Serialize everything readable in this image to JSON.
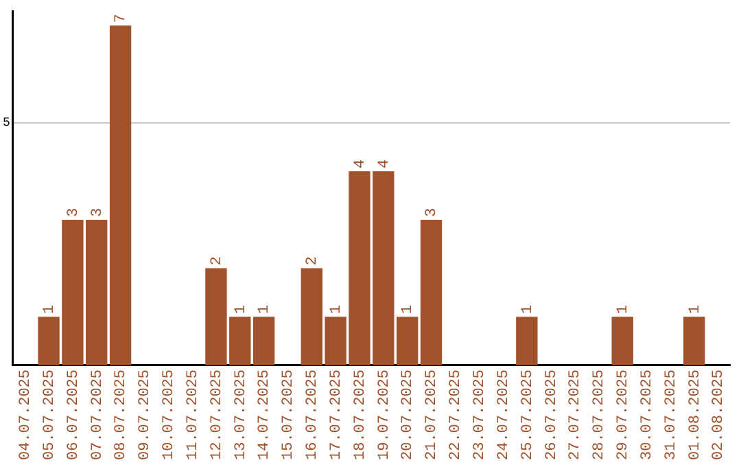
{
  "chart_data": {
    "type": "bar",
    "categories": [
      "04.07.2025",
      "05.07.2025",
      "06.07.2025",
      "07.07.2025",
      "08.07.2025",
      "09.07.2025",
      "10.07.2025",
      "11.07.2025",
      "12.07.2025",
      "13.07.2025",
      "14.07.2025",
      "15.07.2025",
      "16.07.2025",
      "17.07.2025",
      "18.07.2025",
      "19.07.2025",
      "20.07.2025",
      "21.07.2025",
      "22.07.2025",
      "23.07.2025",
      "24.07.2025",
      "25.07.2025",
      "26.07.2025",
      "27.07.2025",
      "28.07.2025",
      "29.07.2025",
      "30.07.2025",
      "31.07.2025",
      "01.08.2025",
      "02.08.2025"
    ],
    "values": [
      0,
      1,
      3,
      3,
      7,
      0,
      0,
      0,
      2,
      1,
      1,
      0,
      2,
      1,
      4,
      4,
      1,
      3,
      0,
      0,
      0,
      1,
      0,
      0,
      0,
      1,
      0,
      0,
      1,
      0
    ],
    "value_labels": [
      null,
      "1",
      "3",
      "3",
      "7",
      null,
      null,
      null,
      "2",
      "1",
      "1",
      null,
      "2",
      "1",
      "4",
      "4",
      "1",
      "3",
      null,
      null,
      null,
      "1",
      null,
      null,
      null,
      "1",
      null,
      null,
      "1",
      null
    ],
    "color": "#a0522d",
    "ylim": [
      0,
      7.3
    ],
    "yticks": [
      5
    ],
    "grid": "y",
    "legend": false
  }
}
